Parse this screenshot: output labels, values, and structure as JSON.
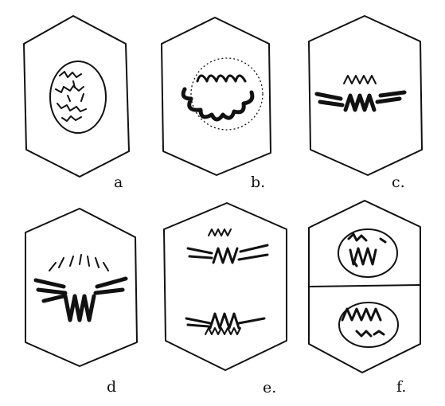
{
  "panels": [
    {
      "id": "a",
      "label": "a"
    },
    {
      "id": "b",
      "label": "b."
    },
    {
      "id": "c",
      "label": "c."
    },
    {
      "id": "d",
      "label": "d"
    },
    {
      "id": "e",
      "label": "e."
    },
    {
      "id": "f",
      "label": "f."
    }
  ]
}
